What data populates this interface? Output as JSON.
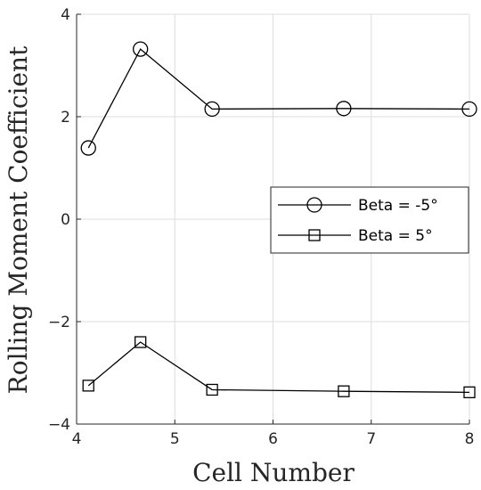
{
  "chart_data": {
    "type": "line",
    "xlabel": "Cell Number",
    "ylabel": "Rolling Moment Coefficient",
    "xlim": [
      4,
      8
    ],
    "ylim": [
      -4,
      4
    ],
    "xticks": [
      "4",
      "5",
      "6",
      "7",
      "8"
    ],
    "yticks": [
      "−4",
      "−2",
      "0",
      "2",
      "4"
    ],
    "xtick_values": [
      4,
      5,
      6,
      7,
      8
    ],
    "ytick_values": [
      -4,
      -2,
      0,
      2,
      4
    ],
    "grid": true,
    "legend_position": "right",
    "series": [
      {
        "name": "Beta = -5°",
        "marker": "circle",
        "color": "#000000",
        "x": [
          4.12,
          4.65,
          5.38,
          6.72,
          8.0
        ],
        "y": [
          1.39,
          3.32,
          2.15,
          2.16,
          2.15
        ]
      },
      {
        "name": "Beta = 5°",
        "marker": "square",
        "color": "#000000",
        "x": [
          4.12,
          4.65,
          5.38,
          6.72,
          8.0
        ],
        "y": [
          -3.25,
          -2.4,
          -3.33,
          -3.36,
          -3.38
        ]
      }
    ]
  }
}
